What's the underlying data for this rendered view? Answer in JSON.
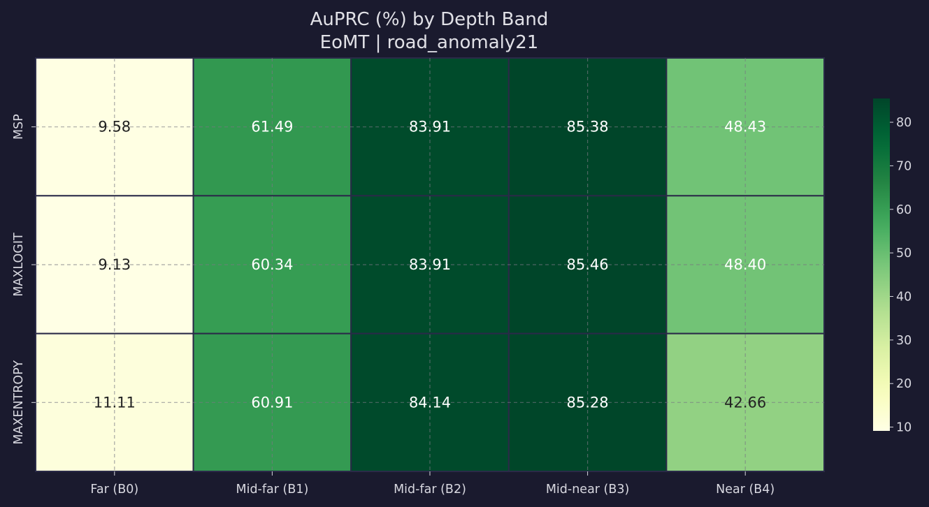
{
  "chart_data": {
    "type": "heatmap",
    "title": "AuPRC (%) by Depth Band",
    "subtitle": "EoMT | road_anomaly21",
    "columns": [
      "Far (B0)",
      "Mid-far (B1)",
      "Mid-far (B2)",
      "Mid-near (B3)",
      "Near (B4)"
    ],
    "rows": [
      "MSP",
      "MAXLOGIT",
      "MAXENTROPY"
    ],
    "values": [
      [
        9.58,
        61.49,
        83.91,
        85.38,
        48.43
      ],
      [
        9.13,
        60.34,
        83.91,
        85.46,
        48.4
      ],
      [
        11.11,
        60.91,
        84.14,
        85.28,
        42.66
      ]
    ],
    "value_labels": [
      [
        "9.58",
        "61.49",
        "83.91",
        "85.38",
        "48.43"
      ],
      [
        "9.13",
        "60.34",
        "83.91",
        "85.46",
        "48.40"
      ],
      [
        "11.11",
        "60.91",
        "84.14",
        "85.28",
        "42.66"
      ]
    ],
    "colormap": "YlGn",
    "vmin": 9.13,
    "vmax": 85.46,
    "colorbar_ticks": [
      10,
      20,
      30,
      40,
      50,
      60,
      70,
      80
    ],
    "colorbar_tick_labels": [
      "10",
      "20",
      "30",
      "40",
      "50",
      "60",
      "70",
      "80"
    ],
    "grid": true,
    "colors": {
      "background": "#1a1a2e",
      "text": "#e0e0e6",
      "cell_border": "#2a2a48",
      "dark_label": "#222222",
      "light_label": "#ffffff"
    }
  }
}
